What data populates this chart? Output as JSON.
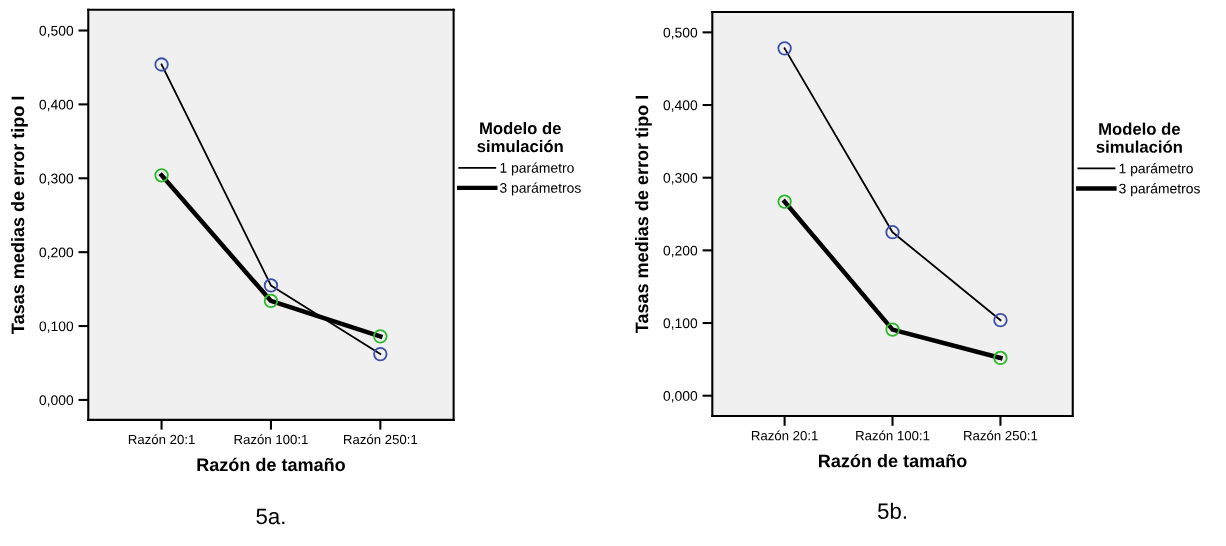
{
  "chart_data": [
    {
      "type": "line",
      "xlabel": "Razón de tamaño",
      "ylabel": "Tasas medias de error tipo I",
      "legend_title": "Modelo de simulación",
      "annotations": [
        "5a."
      ],
      "categories": [
        "Razón 20:1",
        "Razón 100:1",
        "Razón 250:1"
      ],
      "series": [
        {
          "name": "1 parámetro",
          "color": "#3a4fa8",
          "values": [
            0.454,
            0.155,
            0.062
          ]
        },
        {
          "name": "3 parámetros",
          "color": "#2cb72c",
          "values": [
            0.304,
            0.134,
            0.086
          ]
        }
      ],
      "ylim": [
        -0.027,
        0.528
      ],
      "yticks": [
        {
          "value": 0,
          "label": "0,000"
        },
        {
          "value": 0.1,
          "label": "0,100"
        },
        {
          "value": 0.2,
          "label": "0,200"
        },
        {
          "value": 0.3,
          "label": "0,300"
        },
        {
          "value": 0.4,
          "label": "0,400"
        },
        {
          "value": 0.5,
          "label": "0,500"
        }
      ],
      "grid": false,
      "legend": "right",
      "marker": "circle",
      "line_style": "solid"
    },
    {
      "type": "line",
      "xlabel": "Razón de tamaño",
      "ylabel": "Tasas medias de error tipo I",
      "legend_title": "Modelo de simulación",
      "annotations": [
        "5b."
      ],
      "categories": [
        "Razón 20:1",
        "Razón 100:1",
        "Razón 250:1"
      ],
      "series": [
        {
          "name": "1 parámetro",
          "color": "#3a4fa8",
          "values": [
            0.478,
            0.225,
            0.104
          ]
        },
        {
          "name": "3 parámetros",
          "color": "#2cb72c",
          "values": [
            0.267,
            0.091,
            0.052
          ]
        }
      ],
      "ylim": [
        -0.028,
        0.528
      ],
      "yticks": [
        {
          "value": 0,
          "label": "0,000"
        },
        {
          "value": 0.1,
          "label": "0,100"
        },
        {
          "value": 0.2,
          "label": "0,200"
        },
        {
          "value": 0.3,
          "label": "0,300"
        },
        {
          "value": 0.4,
          "label": "0,400"
        },
        {
          "value": 0.5,
          "label": "0,500"
        }
      ],
      "grid": false,
      "legend": "right",
      "marker": "circle",
      "line_style": "solid"
    }
  ]
}
